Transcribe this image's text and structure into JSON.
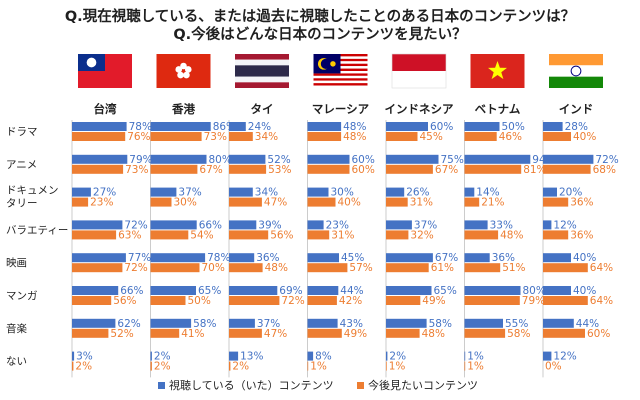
{
  "title_line1": "Q.現在視聴している、または過去に視聴したことのある日本のコンテンツは？",
  "title_line2": "Q.今後はどんな日本のコンテンツを見たい？",
  "colors": {
    "watched": "#4472C4",
    "want": "#ED7D31"
  },
  "legend": {
    "watched": "視聴している（いた）コンテンツ",
    "want": "今後見たいコンテンツ"
  },
  "chart_data": {
    "type": "bar",
    "orientation": "horizontal",
    "xlim": [
      0,
      100
    ],
    "unit": "%",
    "countries": [
      {
        "name": "台湾",
        "flag": "taiwan-flag"
      },
      {
        "name": "香港",
        "flag": "hong-kong-flag"
      },
      {
        "name": "タイ",
        "flag": "thailand-flag"
      },
      {
        "name": "マレーシア",
        "flag": "malaysia-flag"
      },
      {
        "name": "インドネシア",
        "flag": "indonesia-flag"
      },
      {
        "name": "ベトナム",
        "flag": "vietnam-flag"
      },
      {
        "name": "インド",
        "flag": "india-flag"
      }
    ],
    "categories": [
      {
        "label": "ドラマ"
      },
      {
        "label": "アニメ"
      },
      {
        "label": "ドキュメン\nタリー"
      },
      {
        "label": "バラエティー"
      },
      {
        "label": "映画"
      },
      {
        "label": "マンガ"
      },
      {
        "label": "音楽"
      },
      {
        "label": "ない"
      }
    ],
    "series": [
      {
        "name": "視聴している（いた）コンテンツ",
        "values": [
          [
            78,
            86,
            24,
            48,
            60,
            50,
            28
          ],
          [
            79,
            80,
            52,
            60,
            75,
            94,
            72
          ],
          [
            27,
            37,
            34,
            30,
            26,
            14,
            20
          ],
          [
            72,
            66,
            39,
            23,
            37,
            33,
            12
          ],
          [
            77,
            78,
            36,
            45,
            67,
            36,
            40
          ],
          [
            66,
            65,
            69,
            44,
            65,
            80,
            40
          ],
          [
            62,
            58,
            37,
            43,
            58,
            55,
            44
          ],
          [
            3,
            2,
            13,
            8,
            2,
            1,
            12
          ]
        ]
      },
      {
        "name": "今後見たいコンテンツ",
        "values": [
          [
            76,
            73,
            34,
            48,
            45,
            46,
            40
          ],
          [
            73,
            67,
            53,
            60,
            67,
            81,
            68
          ],
          [
            23,
            30,
            47,
            40,
            31,
            21,
            36
          ],
          [
            63,
            54,
            56,
            31,
            32,
            48,
            36
          ],
          [
            72,
            70,
            48,
            57,
            61,
            51,
            64
          ],
          [
            56,
            50,
            72,
            42,
            49,
            79,
            64
          ],
          [
            52,
            41,
            47,
            49,
            48,
            58,
            60
          ],
          [
            2,
            2,
            2,
            1,
            1,
            1,
            0
          ]
        ]
      }
    ]
  }
}
